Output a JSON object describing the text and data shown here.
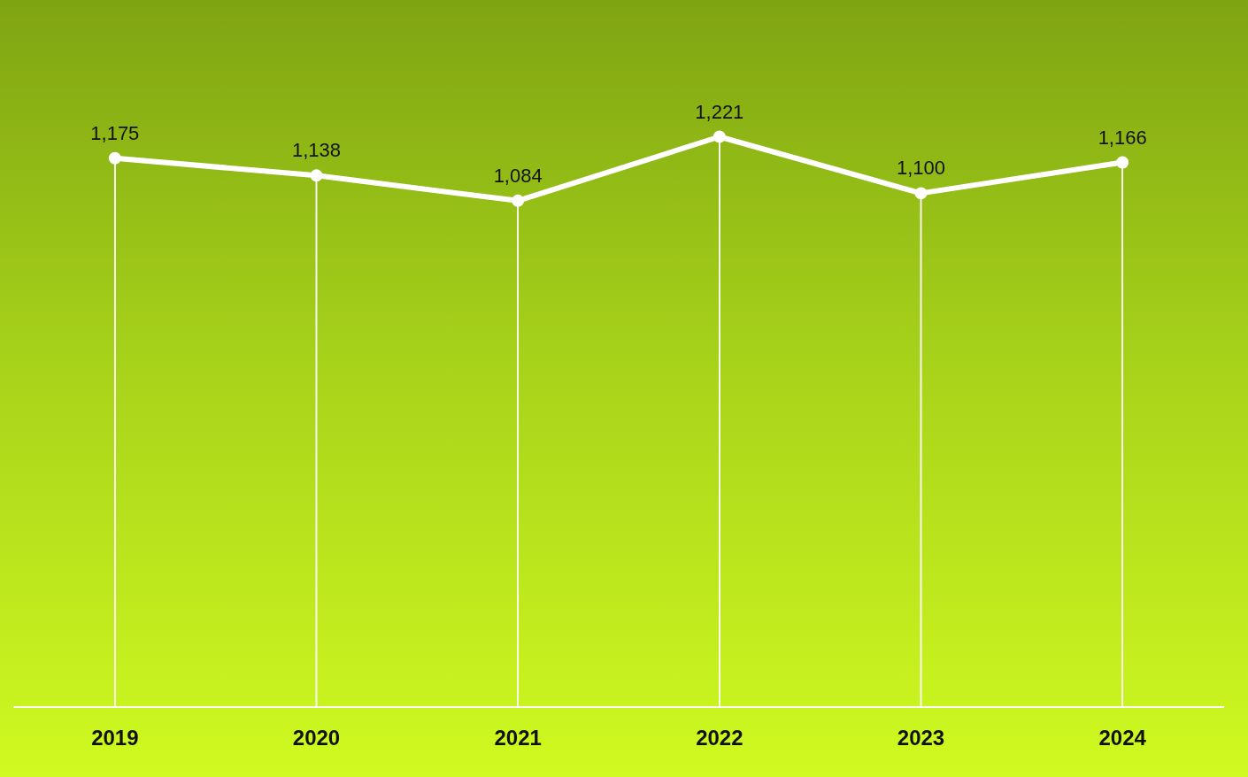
{
  "chart_data": {
    "type": "line",
    "categories": [
      "2019",
      "2020",
      "2021",
      "2022",
      "2023",
      "2024"
    ],
    "series": [
      {
        "color": "#ffffff",
        "values": [
          1175,
          1138,
          1084,
          1221,
          1100,
          1166
        ],
        "value_labels": [
          "1,175",
          "1,138",
          "1,084",
          "1,221",
          "1,100",
          "1,166"
        ]
      }
    ],
    "grid": "x",
    "legend": false,
    "tick_labels": "x",
    "marker": "circle",
    "line_style": "solid"
  }
}
